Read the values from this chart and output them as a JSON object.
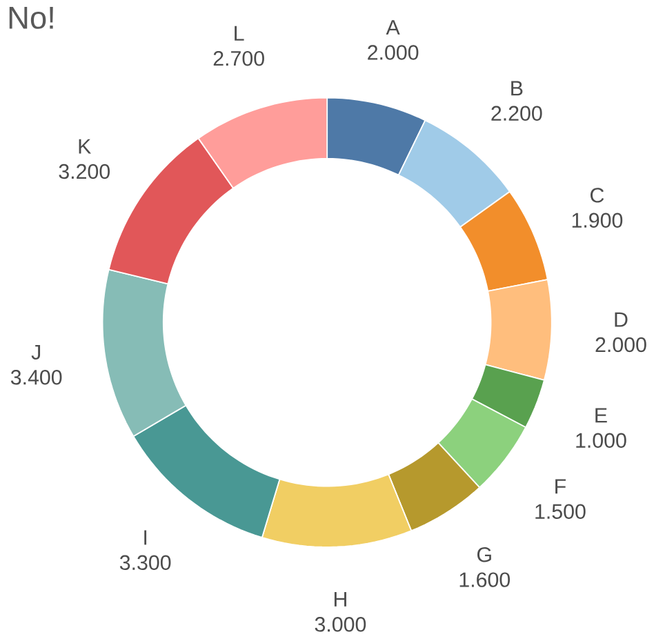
{
  "chart_data": {
    "type": "donut",
    "title": "No!",
    "categories": [
      "A",
      "B",
      "C",
      "D",
      "E",
      "F",
      "G",
      "H",
      "I",
      "J",
      "K",
      "L"
    ],
    "values": [
      2.0,
      2.2,
      1.9,
      2.0,
      1.0,
      1.5,
      1.6,
      3.0,
      3.3,
      3.4,
      3.2,
      2.7
    ],
    "value_labels": [
      "2.000",
      "2.200",
      "1.900",
      "2.000",
      "1.000",
      "1.500",
      "1.600",
      "3.000",
      "3.300",
      "3.400",
      "3.200",
      "2.700"
    ],
    "colors": [
      "#4e79a7",
      "#a0cbe8",
      "#f28e2b",
      "#ffbe7d",
      "#59a14f",
      "#8cd17d",
      "#b6992d",
      "#f1ce63",
      "#499894",
      "#86bcb6",
      "#e15759",
      "#ff9d9a"
    ]
  }
}
